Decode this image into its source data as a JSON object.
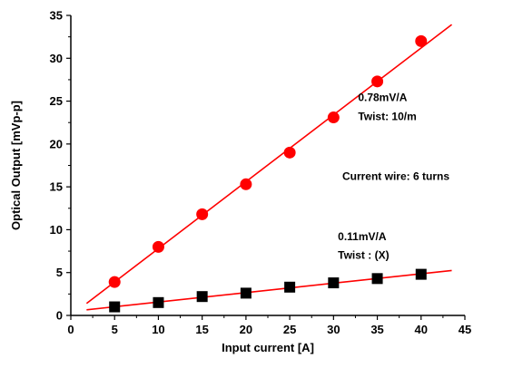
{
  "chart_data": {
    "type": "scatter",
    "title": "",
    "xlabel": "Input current [A]",
    "ylabel": "Optical Output [mVp-p]",
    "xlim": [
      0,
      45
    ],
    "ylim": [
      0,
      35
    ],
    "xticks": [
      0,
      5,
      10,
      15,
      20,
      25,
      30,
      35,
      40,
      45
    ],
    "yticks": [
      0,
      5,
      10,
      15,
      20,
      25,
      30,
      35
    ],
    "grid": false,
    "series": [
      {
        "marker": "circle",
        "color": "#ff0000",
        "x": [
          5,
          10,
          15,
          20,
          25,
          30,
          35,
          40
        ],
        "y": [
          3.9,
          8.0,
          11.8,
          15.3,
          19.0,
          23.1,
          27.3,
          32.0
        ],
        "fit": {
          "slope": 0.78,
          "intercept": 0,
          "x_range": [
            1.8,
            43.5
          ],
          "color": "#ff0000"
        }
      },
      {
        "marker": "square",
        "color": "#000000",
        "x": [
          5,
          10,
          15,
          20,
          25,
          30,
          35,
          40
        ],
        "y": [
          1.0,
          1.5,
          2.2,
          2.6,
          3.3,
          3.8,
          4.3,
          4.8
        ],
        "fit": {
          "slope": 0.11,
          "intercept": 0.46,
          "x_range": [
            1.8,
            43.5
          ],
          "color": "#ff0000"
        }
      }
    ],
    "annotations": [
      {
        "text": "0.78mV/A",
        "x": 32.8,
        "y": 25.0
      },
      {
        "text": "Twist: 10/m",
        "x": 32.8,
        "y": 22.8
      },
      {
        "text": "Current wire: 6 turns",
        "x": 31.0,
        "y": 15.8
      },
      {
        "text": "0.11mV/A",
        "x": 30.5,
        "y": 8.8
      },
      {
        "text": "Twist : (X)",
        "x": 30.5,
        "y": 6.6
      }
    ]
  }
}
